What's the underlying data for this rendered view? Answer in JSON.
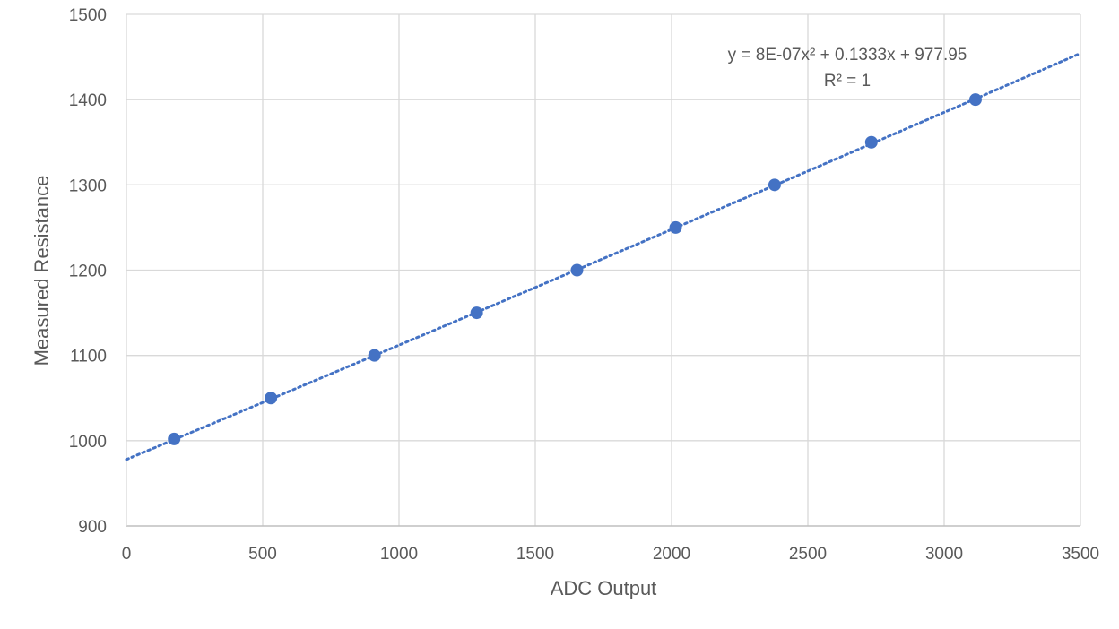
{
  "chart_data": {
    "type": "scatter",
    "title": "",
    "xlabel": "ADC Output",
    "ylabel": "Measured Resistance",
    "xlim": [
      0,
      3500
    ],
    "ylim": [
      900,
      1500
    ],
    "x_ticks": [
      "0",
      "500",
      "1000",
      "1500",
      "2000",
      "2500",
      "3000",
      "3500"
    ],
    "y_ticks": [
      "900",
      "1000",
      "1100",
      "1200",
      "1300",
      "1400",
      "1500"
    ],
    "grid": true,
    "legend": "none",
    "series": [
      {
        "x": [
          175,
          530,
          910,
          1285,
          1653,
          2015,
          2378,
          2733,
          3115
        ],
        "y": [
          1002,
          1050,
          1100,
          1150,
          1200,
          1250,
          1300,
          1350,
          1400
        ],
        "color": "#4472C4"
      }
    ],
    "trendline": {
      "type": "polynomial",
      "coefficients": [
        8e-07,
        0.1333,
        977.95
      ],
      "style": "dotted",
      "color": "#4472C4",
      "equation_text": "y = 8E-07x² + 0.1333x + 977.95",
      "r2_text": "R² = 1"
    }
  }
}
